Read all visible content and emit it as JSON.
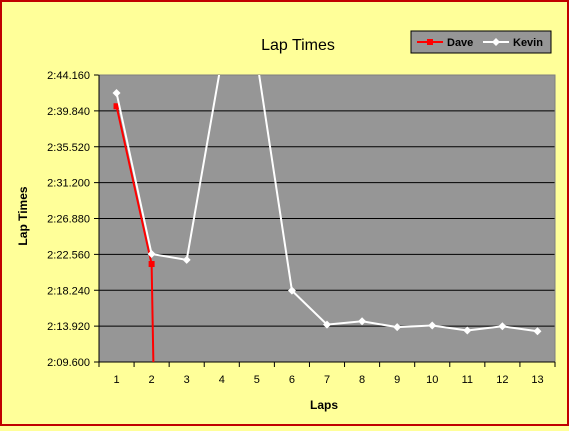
{
  "chart_data": {
    "type": "line",
    "title": "Lap Times",
    "xlabel": "Laps",
    "ylabel": "Lap Times",
    "categories": [
      "1",
      "2",
      "3",
      "4",
      "5",
      "6",
      "7",
      "8",
      "9",
      "10",
      "11",
      "12",
      "13"
    ],
    "y_tick_labels": [
      "2:09.600",
      "2:13.920",
      "2:18.240",
      "2:22.560",
      "2:26.880",
      "2:31.200",
      "2:35.520",
      "2:39.840",
      "2:44.160"
    ],
    "ylim_seconds": [
      129.6,
      164.16
    ],
    "y_tick_step_seconds": 4.32,
    "grid": "horizontal",
    "legend_position": "top-right",
    "series": [
      {
        "name": "Dave",
        "color": "#ff0000",
        "marker": "square",
        "points": [
          {
            "x": 1,
            "y": 160.4
          },
          {
            "x": 2,
            "y": 141.4
          },
          {
            "x": 2.05,
            "y": 129.6
          }
        ]
      },
      {
        "name": "Kevin",
        "color": "#ffffff",
        "marker": "diamond",
        "points": [
          {
            "x": 1,
            "y": 162.0
          },
          {
            "x": 2,
            "y": 142.6
          },
          {
            "x": 3,
            "y": 141.9
          },
          {
            "x": 4,
            "y": 166.0
          },
          {
            "x": 5,
            "y": 166.0
          },
          {
            "x": 6,
            "y": 138.2
          },
          {
            "x": 7,
            "y": 134.1
          },
          {
            "x": 8,
            "y": 134.5
          },
          {
            "x": 9,
            "y": 133.8
          },
          {
            "x": 10,
            "y": 134.0
          },
          {
            "x": 11,
            "y": 133.4
          },
          {
            "x": 12,
            "y": 133.9
          },
          {
            "x": 13,
            "y": 133.3
          }
        ]
      }
    ]
  }
}
